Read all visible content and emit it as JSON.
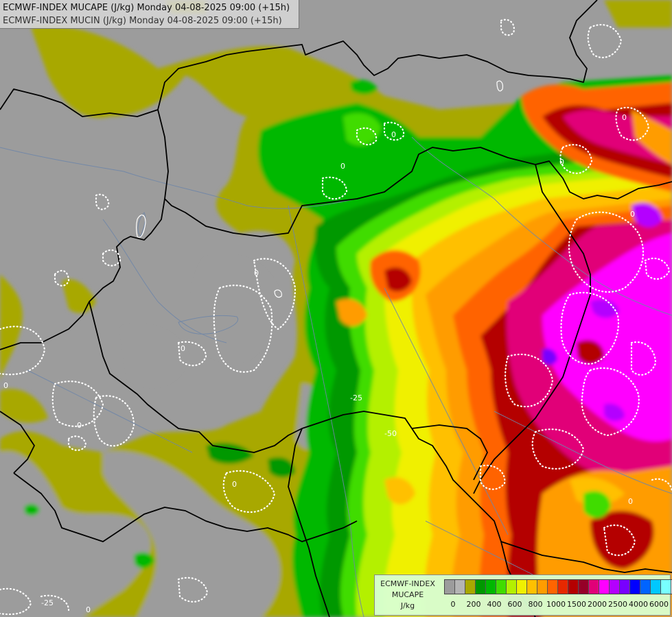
{
  "header": {
    "line1": "ECMWF-INDEX MUCAPE (J/kg) Monday 04-08-2025 09:00 (+15h)",
    "line2": "ECMWF-INDEX MUCIN (J/kg) Monday 04-08-2025 09:00 (+15h)"
  },
  "map_labels": {
    "cin_0": "0",
    "cin_25": "-25",
    "cin_50": "-50"
  },
  "legend": {
    "model": "ECMWF-INDEX",
    "field": "MUCAPE",
    "unit": "J/kg",
    "colors": [
      "#9c9c9c",
      "#b4b4b4",
      "#a8a800",
      "#009800",
      "#00b800",
      "#40dc00",
      "#b4f000",
      "#f0f000",
      "#ffc000",
      "#ff9c00",
      "#ff6400",
      "#e62800",
      "#b40000",
      "#960028",
      "#e10078",
      "#ff00ff",
      "#b400ff",
      "#7800ff",
      "#0000ff",
      "#0064ff",
      "#00c8ff",
      "#78ffff",
      "#ffffff"
    ],
    "ticks": [
      "0",
      "200",
      "400",
      "600",
      "800",
      "1000",
      "1500",
      "2000",
      "2500",
      "4000",
      "6000"
    ]
  },
  "colors": {
    "background": "#9c9c9c",
    "low_cape": "#a8a800",
    "border": "#000000",
    "river": "#6f86a8"
  }
}
